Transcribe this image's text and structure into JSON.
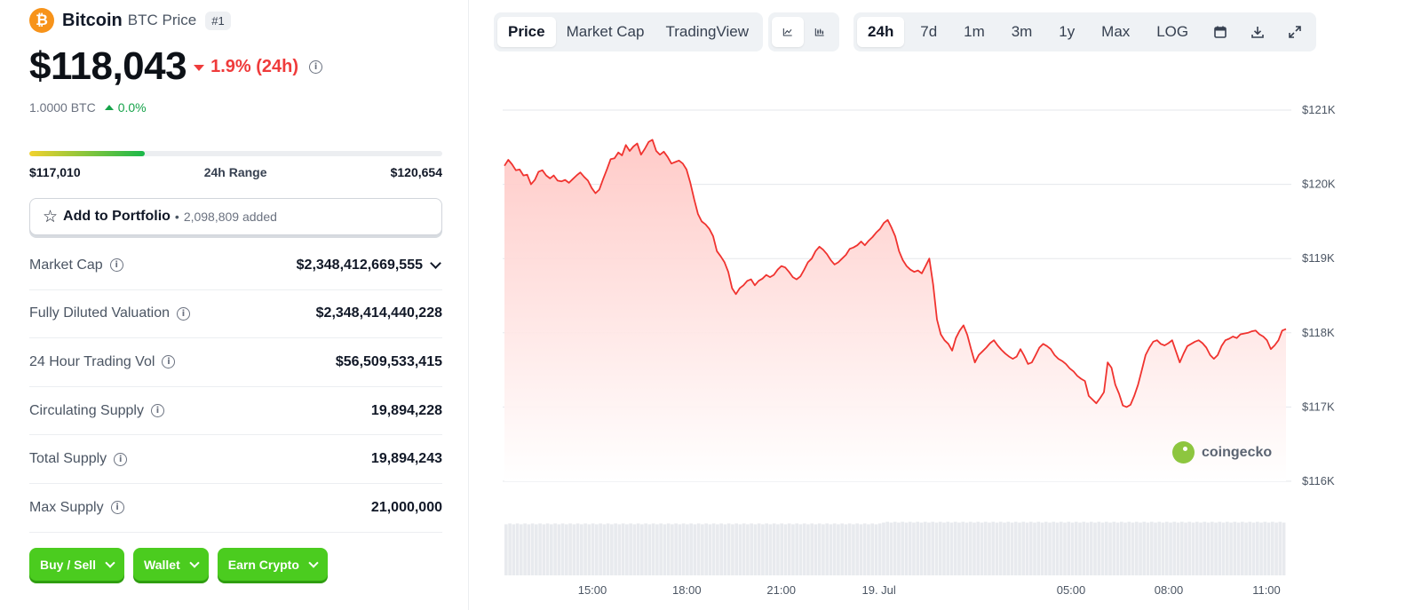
{
  "coin": {
    "name": "Bitcoin",
    "symbol_label": "BTC Price",
    "rank": "#1",
    "logo_glyph": "₿",
    "price": "$118,043",
    "change_24h": "1.9% (24h)",
    "btc_amount": "1.0000 BTC",
    "btc_change": "0.0%"
  },
  "range": {
    "low": "$117,010",
    "label": "24h Range",
    "high": "$120,654",
    "fill_fraction": 0.28
  },
  "portfolio": {
    "label": "Add to Portfolio",
    "separator": "•",
    "count": "2,098,809 added"
  },
  "stats": [
    {
      "label": "Market Cap",
      "value": "$2,348,412,669,555"
    },
    {
      "label": "Fully Diluted Valuation",
      "value": "$2,348,414,440,228"
    },
    {
      "label": "24 Hour Trading Vol",
      "value": "$56,509,533,415"
    },
    {
      "label": "Circulating Supply",
      "value": "19,894,228"
    },
    {
      "label": "Total Supply",
      "value": "19,894,243"
    },
    {
      "label": "Max Supply",
      "value": "21,000,000"
    }
  ],
  "actions": {
    "buy_sell": "Buy / Sell",
    "wallet": "Wallet",
    "earn": "Earn Crypto"
  },
  "toolbar": {
    "views": [
      "Price",
      "Market Cap",
      "TradingView"
    ],
    "active_view": "Price",
    "chart_types": [
      "line-chart-icon",
      "candlestick-icon"
    ],
    "ranges": [
      "24h",
      "7d",
      "1m",
      "3m",
      "1y",
      "Max",
      "LOG"
    ],
    "active_range": "24h",
    "tools": [
      "calendar-icon",
      "download-icon",
      "expand-icon"
    ]
  },
  "watermark": "coingecko",
  "colors": {
    "down": "#ef3b3b",
    "up": "#16a34a",
    "line": "#f0332f",
    "fill": "#ffd6d4",
    "volume": "#e8eaee",
    "button_green": "#4bcc1f"
  },
  "chart_data": {
    "type": "area",
    "y_tick_labels": [
      "$121K",
      "$120K",
      "$119K",
      "$118K",
      "$117K",
      "$116K"
    ],
    "ylim": [
      116000,
      121000
    ],
    "x_tick_labels": [
      "15:00",
      "18:00",
      "21:00",
      "19. Jul",
      "05:00",
      "08:00",
      "11:00"
    ],
    "x_tick_hours": [
      2.7,
      5.6,
      8.5,
      11.5,
      17.4,
      20.4,
      23.4
    ],
    "xlim_hours": [
      0,
      24
    ],
    "series": [
      {
        "values": [
          120250,
          120330,
          120270,
          120190,
          120200,
          120120,
          120130,
          120000,
          120060,
          120170,
          120190,
          120120,
          120080,
          120120,
          120050,
          120040,
          120060,
          120020,
          120070,
          120120,
          120160,
          120100,
          120050,
          119950,
          119880,
          119930,
          120070,
          120200,
          120340,
          120350,
          120430,
          120390,
          120530,
          120450,
          120510,
          120550,
          120400,
          120480,
          120570,
          120600,
          120450,
          120400,
          120440,
          120370,
          120280,
          120300,
          120320,
          120280,
          120200,
          120020,
          119800,
          119600,
          119500,
          119460,
          119400,
          119300,
          119100,
          119030,
          118950,
          118820,
          118600,
          118520,
          118600,
          118640,
          118700,
          118720,
          118640,
          118700,
          118730,
          118780,
          118750,
          118780,
          118850,
          118900,
          118880,
          118820,
          118750,
          118720,
          118760,
          118850,
          118950,
          119000,
          119100,
          119160,
          119120,
          119060,
          118980,
          118920,
          118950,
          119000,
          119050,
          119130,
          119150,
          119180,
          119230,
          119180,
          119240,
          119290,
          119350,
          119400,
          119480,
          119520,
          119420,
          119300,
          119100,
          118980,
          118900,
          118850,
          118820,
          118840,
          118800,
          118900,
          119000,
          118650,
          118180,
          117980,
          117900,
          117850,
          117760,
          117930,
          118030,
          118100,
          117970,
          117780,
          117600,
          117700,
          117750,
          117800,
          117860,
          117900,
          117830,
          117770,
          117720,
          117680,
          117650,
          117680,
          117780,
          117690,
          117580,
          117600,
          117700,
          117800,
          117850,
          117820,
          117780,
          117700,
          117650,
          117620,
          117580,
          117520,
          117480,
          117420,
          117380,
          117350,
          117150,
          117100,
          117050,
          117120,
          117200,
          117600,
          117530,
          117300,
          117180,
          117020,
          117000,
          117030,
          117150,
          117300,
          117500,
          117700,
          117800,
          117880,
          117900,
          117850,
          117830,
          117860,
          117900,
          117750,
          117600,
          117720,
          117820,
          117850,
          117880,
          117900,
          117860,
          117800,
          117700,
          117650,
          117700,
          117820,
          117900,
          117920,
          117950,
          117930,
          117980,
          117990,
          118000,
          118020,
          118030,
          117980,
          117950,
          117900,
          117780,
          117830,
          117900,
          118030,
          118050
        ]
      }
    ],
    "volume": [
      62,
      63,
      62,
      63,
      62,
      63,
      62,
      63,
      62,
      63,
      62,
      63,
      62,
      63,
      62,
      63,
      62,
      63,
      62,
      63,
      62,
      63,
      62,
      63,
      62,
      63,
      62,
      63,
      62,
      63,
      62,
      63,
      62,
      63,
      62,
      63,
      62,
      63,
      62,
      63,
      62,
      63,
      62,
      63,
      62,
      63,
      62,
      63,
      62,
      63,
      62,
      63,
      62,
      63,
      62,
      63,
      62,
      63,
      62,
      63,
      62,
      63,
      62,
      63,
      62,
      63,
      62,
      63,
      62,
      63,
      62,
      63,
      62,
      63,
      62,
      63,
      62,
      63,
      62,
      63,
      62,
      63,
      62,
      63,
      62,
      63,
      62,
      63,
      62,
      63,
      62,
      63,
      62,
      63,
      62,
      63,
      62,
      63,
      62,
      63,
      64,
      65,
      64,
      65,
      64,
      65,
      64,
      65,
      64,
      65,
      64,
      65,
      64,
      65,
      64,
      65,
      64,
      65,
      64,
      65,
      64,
      65,
      64,
      65,
      64,
      65,
      64,
      65,
      64,
      65,
      64,
      65,
      64,
      65,
      64,
      65,
      64,
      65,
      64,
      65,
      64,
      65,
      64,
      65,
      64,
      65,
      64,
      65,
      64,
      65,
      64,
      65,
      64,
      65,
      64,
      65,
      64,
      65,
      64,
      65,
      64,
      65,
      64,
      65,
      64,
      65,
      64,
      65,
      64,
      65,
      64,
      65,
      64,
      65,
      64,
      65,
      64,
      65,
      64,
      65,
      64,
      65,
      64,
      65,
      64,
      65,
      64,
      65,
      64,
      65,
      64,
      65,
      64,
      65,
      64,
      65,
      64,
      65,
      64,
      65,
      64,
      65,
      64,
      65,
      64,
      65,
      64
    ],
    "grid": true
  }
}
